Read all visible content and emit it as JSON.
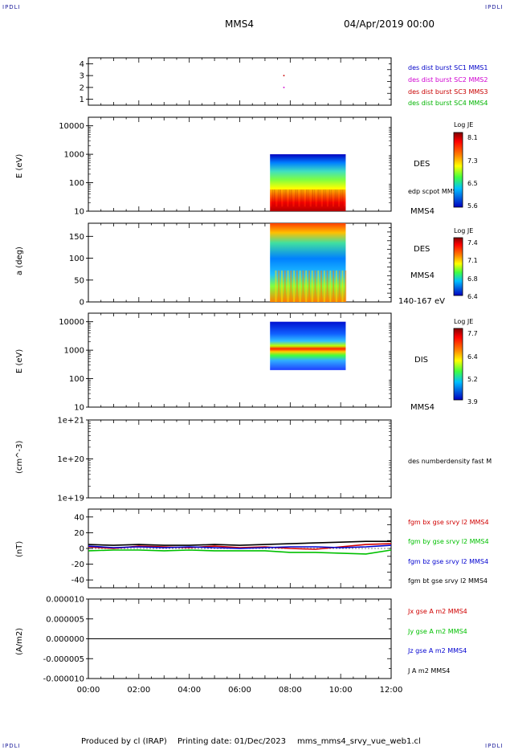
{
  "header": {
    "corner_label": "IPDLI",
    "spacecraft": "MMS4",
    "date_time": "04/Apr/2019 00:00"
  },
  "footer": {
    "produced_by": "Produced by cl (IRAP)",
    "printing_date": "Printing date: 01/Dec/2023",
    "plot_file": "mms_mms4_srvy_vue_web1.cl"
  },
  "colorbars": {
    "low": "#2020c0",
    "mid": "#40ff40",
    "high": "#c00000"
  },
  "chart_data": [
    {
      "type": "scatter",
      "panel": "burst-availability",
      "ylim": [
        0.5,
        4.5
      ],
      "y_ticks": [
        "1",
        "2",
        "3",
        "4"
      ],
      "x_tick_labels": [
        "00:00",
        "02:00",
        "04:00",
        "06:00",
        "08:00",
        "10:00",
        "12:00"
      ],
      "series": [
        {
          "name": "des dist burst SC1 MMS1",
          "color": "#0000c8",
          "points": []
        },
        {
          "name": "des dist burst SC2 MMS2",
          "color": "#d000d0",
          "points": [
            {
              "x": 7.75,
              "y": 2
            }
          ]
        },
        {
          "name": "des dist burst SC3 MMS3",
          "color": "#c80000",
          "points": [
            {
              "x": 7.75,
              "y": 3
            }
          ]
        },
        {
          "name": "des dist burst SC4 MMS4",
          "color": "#00b400",
          "points": []
        }
      ]
    },
    {
      "type": "heatmap",
      "panel": "des-energy-spectrogram",
      "ylabel": "E (eV)",
      "yscale": "log",
      "ylim": [
        10,
        20000
      ],
      "y_ticks": [
        "10",
        "100",
        "1000",
        "10000"
      ],
      "data_time_range": [
        7.2,
        10.2
      ],
      "data_y_range": [
        10,
        1000
      ],
      "instrument": "DES",
      "extra_label": "edp scpot MMS4",
      "spacecraft_label": "MMS4",
      "colorbar": {
        "title": "Log JE",
        "labels": [
          "8.1",
          "7.3",
          "6.5",
          "5.6"
        ]
      }
    },
    {
      "type": "heatmap",
      "panel": "des-pitch-angle",
      "ylabel": "a (deg)",
      "ylim": [
        0,
        180
      ],
      "y_ticks": [
        "0",
        "50",
        "100",
        "150"
      ],
      "data_time_range": [
        7.2,
        10.2
      ],
      "instrument": "DES",
      "spacecraft_label": "MMS4",
      "energy_range_label": "140-167 eV",
      "colorbar": {
        "title": "Log JE",
        "labels": [
          "7.4",
          "7.1",
          "6.8",
          "6.4"
        ]
      }
    },
    {
      "type": "heatmap",
      "panel": "dis-energy-spectrogram",
      "ylabel": "E (eV)",
      "yscale": "log",
      "ylim": [
        10,
        20000
      ],
      "y_ticks": [
        "10",
        "100",
        "1000",
        "10000"
      ],
      "data_time_range": [
        7.2,
        10.2
      ],
      "data_y_range": [
        200,
        10000
      ],
      "instrument": "DIS",
      "spacecraft_label": "MMS4",
      "colorbar": {
        "title": "Log JE",
        "labels": [
          "7.7",
          "6.4",
          "5.2",
          "3.9"
        ]
      }
    },
    {
      "type": "line",
      "panel": "density",
      "ylabel": "(cm^-3)",
      "yscale": "log",
      "ylim": [
        1e+19,
        1e+21
      ],
      "y_ticks": [
        "1e+19",
        "1e+20",
        "1e+21"
      ],
      "series": [
        {
          "name": "des numberdensity fast M",
          "color": "#000000",
          "x": [],
          "y": []
        }
      ]
    },
    {
      "type": "line",
      "panel": "magnetic-field",
      "ylabel": "(nT)",
      "ylim": [
        -50,
        50
      ],
      "y_ticks": [
        "-40",
        "-20",
        "0",
        "20",
        "40"
      ],
      "x": [
        0,
        1,
        2,
        3,
        4,
        5,
        6,
        7,
        8,
        9,
        10,
        11,
        12
      ],
      "series": [
        {
          "name": "fgm bx gse srvy l2 MMS4",
          "color": "#d00000",
          "y": [
            2,
            0,
            3,
            2,
            1,
            3,
            1,
            2,
            0,
            -1,
            2,
            5,
            6
          ]
        },
        {
          "name": "fgm by gse srvy l2 MMS4",
          "color": "#00c000",
          "y": [
            -3,
            -2,
            -2,
            -3,
            -2,
            -3,
            -3,
            -3,
            -5,
            -5,
            -6,
            -7,
            -2
          ]
        },
        {
          "name": "fgm bz gse srvy l2 MMS4",
          "color": "#0000d0",
          "y": [
            3,
            1,
            2,
            1,
            2,
            1,
            0,
            1,
            2,
            2,
            1,
            2,
            4
          ]
        },
        {
          "name": "fgm bt gse srvy l2 MMS4",
          "color": "#000000",
          "y": [
            5,
            4,
            5,
            4,
            4,
            5,
            4,
            5,
            6,
            7,
            8,
            9,
            9
          ]
        }
      ]
    },
    {
      "type": "line",
      "panel": "current-density",
      "ylabel": "(A/m2)",
      "ylim": [
        -1e-05,
        1e-05
      ],
      "y_ticks": [
        "-0.000010",
        "-0.000005",
        "0.000000",
        "0.000005",
        "0.000010"
      ],
      "x_tick_labels": [
        "00:00",
        "02:00",
        "04:00",
        "06:00",
        "08:00",
        "10:00",
        "12:00"
      ],
      "x": [
        0,
        2,
        4,
        6,
        8,
        10,
        12
      ],
      "series": [
        {
          "name": "Jx gse A m2 MMS4",
          "color": "#d00000",
          "y": [
            0,
            0,
            0,
            0,
            0,
            0,
            0
          ]
        },
        {
          "name": "Jy gse A m2 MMS4",
          "color": "#00c000",
          "y": [
            0,
            0,
            0,
            0,
            0,
            0,
            0
          ]
        },
        {
          "name": "Jz gse A m2 MMS4",
          "color": "#0000d0",
          "y": [
            0,
            0,
            0,
            0,
            0,
            0,
            0
          ]
        },
        {
          "name": "J A m2 MMS4",
          "color": "#000000",
          "y": [
            0,
            0,
            0,
            0,
            0,
            0,
            0
          ]
        }
      ]
    }
  ]
}
